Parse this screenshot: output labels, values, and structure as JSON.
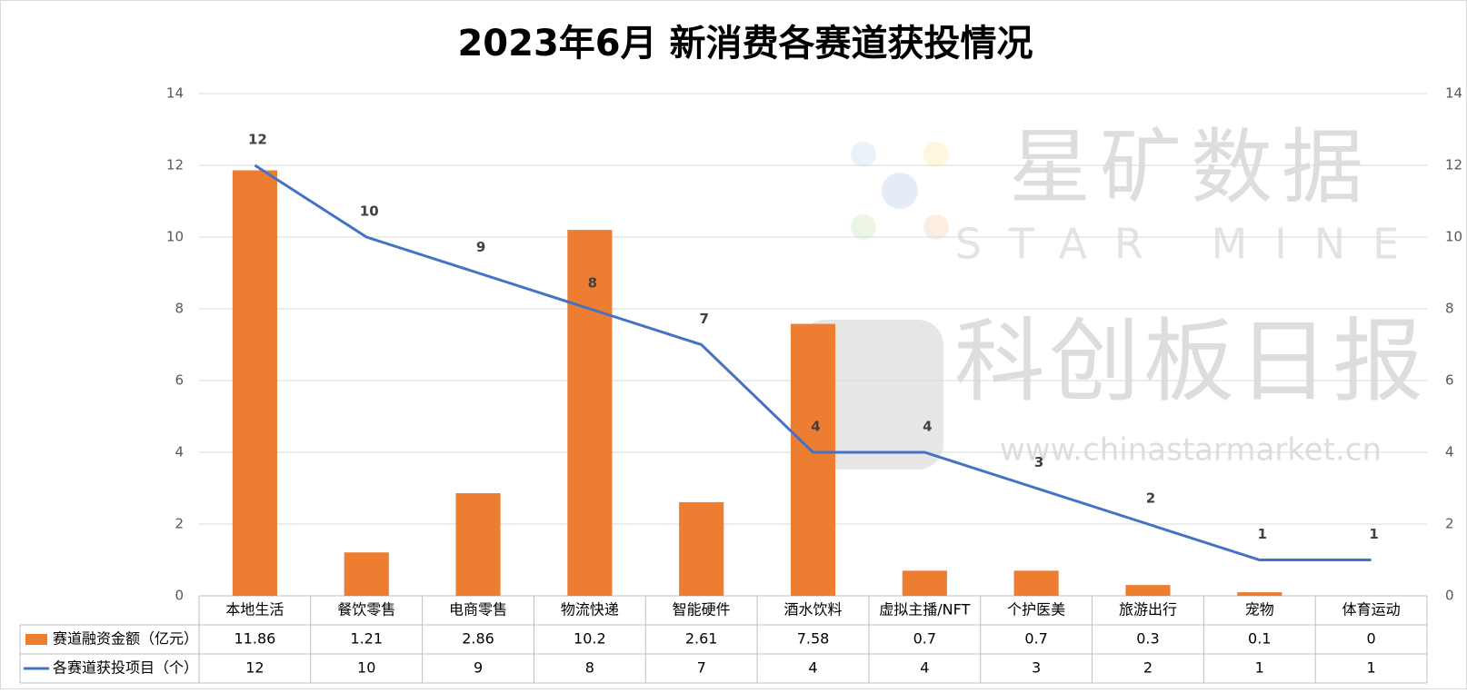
{
  "chart_data": {
    "type": "bar-line",
    "title": "2023年6月 新消费各赛道获投情况",
    "categories": [
      "本地生活",
      "餐饮零售",
      "电商零售",
      "物流快递",
      "智能硬件",
      "酒水饮料",
      "虚拟主播/NFT",
      "个护医美",
      "旅游出行",
      "宠物",
      "体育运动"
    ],
    "series": [
      {
        "name": "赛道融资金额（亿元）",
        "type": "bar",
        "color": "#ED7D31",
        "values": [
          11.86,
          1.21,
          2.86,
          10.2,
          2.61,
          7.58,
          0.7,
          0.7,
          0.3,
          0.1,
          0
        ]
      },
      {
        "name": "各赛道获投项目（个）",
        "type": "line",
        "axis": "y2",
        "color": "#4472C4",
        "values": [
          12,
          10,
          9,
          8,
          7,
          4,
          4,
          3,
          2,
          1,
          1
        ]
      }
    ],
    "ylim": [
      0,
      14
    ],
    "yticks": [
      0,
      2,
      4,
      6,
      8,
      10,
      12,
      14
    ],
    "y2lim": [
      0,
      14
    ],
    "y2ticks": [
      0,
      2,
      4,
      6,
      8,
      10,
      12,
      14
    ],
    "grid": true,
    "watermarks": [
      "星矿数据",
      "STAR MINE",
      "科创板日报",
      "www.chinastarmarket.cn"
    ]
  }
}
